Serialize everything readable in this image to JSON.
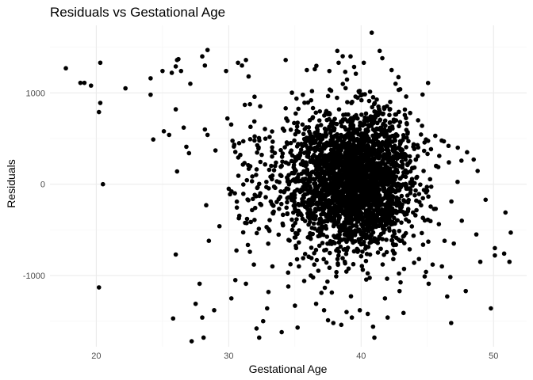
{
  "chart_data": {
    "type": "scatter",
    "title": "Residuals vs Gestational Age",
    "xlabel": "Gestational Age",
    "ylabel": "Residuals",
    "xlim": [
      16.5,
      52.5
    ],
    "ylim": [
      -1780,
      1740
    ],
    "x_ticks": [
      20,
      30,
      40,
      50
    ],
    "y_ticks": [
      -1000,
      0,
      1000
    ],
    "x_tick_labels": [
      "20",
      "30",
      "40",
      "50"
    ],
    "y_tick_labels": [
      "-1000",
      "0",
      "1000"
    ],
    "grid": true,
    "legend": "none",
    "point_color": "#000000",
    "background": "#ffffff",
    "approx_total_points": 3000,
    "points": [
      [
        17.7,
        1270
      ],
      [
        18.8,
        1110
      ],
      [
        19.1,
        1110
      ],
      [
        19.6,
        1080
      ],
      [
        20.2,
        790
      ],
      [
        20.3,
        890
      ],
      [
        20.3,
        1330
      ],
      [
        20.5,
        0
      ],
      [
        20.2,
        -1130
      ],
      [
        22.2,
        1050
      ],
      [
        24.1,
        1160
      ],
      [
        24.1,
        980
      ],
      [
        24.3,
        490
      ],
      [
        25.0,
        1240
      ],
      [
        25.1,
        580
      ],
      [
        25.5,
        540
      ],
      [
        25.7,
        1220
      ],
      [
        25.8,
        -1470
      ],
      [
        26.0,
        1290
      ],
      [
        26.1,
        1360
      ],
      [
        26.2,
        1370
      ],
      [
        26.0,
        820
      ],
      [
        26.1,
        140
      ],
      [
        26.0,
        -770
      ],
      [
        26.4,
        1240
      ],
      [
        26.6,
        620
      ],
      [
        26.8,
        410
      ],
      [
        27.0,
        340
      ],
      [
        27.1,
        1100
      ],
      [
        27.2,
        -1720
      ],
      [
        27.5,
        -1310
      ],
      [
        27.8,
        -1090
      ],
      [
        28.0,
        1400
      ],
      [
        28.4,
        1470
      ],
      [
        28.2,
        1300
      ],
      [
        28.1,
        -1680
      ],
      [
        28.2,
        600
      ],
      [
        28.4,
        540
      ],
      [
        28.3,
        -230
      ],
      [
        28.5,
        -620
      ],
      [
        28.0,
        -1460
      ],
      [
        28.9,
        -1380
      ],
      [
        29.0,
        370
      ],
      [
        29.3,
        -460
      ],
      [
        29.8,
        1240
      ],
      [
        29.9,
        720
      ],
      [
        30.0,
        -50
      ],
      [
        30.1,
        -110
      ],
      [
        30.2,
        -1250
      ],
      [
        30.5,
        -1050
      ],
      [
        30.7,
        1330
      ],
      [
        31.0,
        1300
      ],
      [
        31.3,
        1360
      ],
      [
        31.5,
        1180
      ],
      [
        31.3,
        -1090
      ],
      [
        31.6,
        -740
      ],
      [
        31.9,
        -880
      ],
      [
        32.1,
        -1580
      ],
      [
        32.3,
        -1680
      ],
      [
        32.0,
        -260
      ],
      [
        32.6,
        -1500
      ],
      [
        32.9,
        -1360
      ],
      [
        33.0,
        -1180
      ],
      [
        33.3,
        -900
      ],
      [
        33.4,
        -300
      ],
      [
        33.5,
        200
      ],
      [
        33.9,
        100
      ],
      [
        34.0,
        -1620
      ],
      [
        34.1,
        -450
      ],
      [
        34.3,
        1360
      ],
      [
        34.5,
        -1120
      ],
      [
        34.8,
        -500
      ],
      [
        35.2,
        -1570
      ],
      [
        35.0,
        -1330
      ],
      [
        35.3,
        -900
      ],
      [
        35.7,
        -1060
      ],
      [
        35.6,
        980
      ],
      [
        35.9,
        1250
      ],
      [
        36.2,
        -1000
      ],
      [
        36.5,
        1260
      ],
      [
        36.6,
        -1310
      ],
      [
        37.0,
        -1190
      ],
      [
        37.2,
        -1380
      ],
      [
        37.5,
        -1490
      ],
      [
        37.6,
        1240
      ],
      [
        37.9,
        -1520
      ],
      [
        38.2,
        1460
      ],
      [
        38.3,
        1330
      ],
      [
        38.5,
        -1540
      ],
      [
        38.8,
        1230
      ],
      [
        38.9,
        -1400
      ],
      [
        39.2,
        1400
      ],
      [
        39.3,
        -1460
      ],
      [
        39.6,
        1210
      ],
      [
        39.9,
        -1380
      ],
      [
        40.2,
        1330
      ],
      [
        40.5,
        -1420
      ],
      [
        40.8,
        1660
      ],
      [
        40.9,
        -1560
      ],
      [
        41.0,
        -1680
      ],
      [
        41.4,
        1460
      ],
      [
        41.6,
        1380
      ],
      [
        41.8,
        -1250
      ],
      [
        42.0,
        -1460
      ],
      [
        42.3,
        1250
      ],
      [
        42.6,
        1100
      ],
      [
        42.9,
        -1170
      ],
      [
        43.2,
        -1410
      ],
      [
        43.4,
        960
      ],
      [
        43.7,
        780
      ],
      [
        44.0,
        -860
      ],
      [
        44.3,
        700
      ],
      [
        44.6,
        640
      ],
      [
        44.9,
        -960
      ],
      [
        45.1,
        -1090
      ],
      [
        45.4,
        -880
      ],
      [
        45.6,
        530
      ],
      [
        45.9,
        310
      ],
      [
        46.1,
        -900
      ],
      [
        46.3,
        -620
      ],
      [
        46.6,
        420
      ],
      [
        46.8,
        -1520
      ],
      [
        47.0,
        -650
      ],
      [
        47.3,
        400
      ],
      [
        47.6,
        -400
      ],
      [
        47.9,
        -1170
      ],
      [
        48.0,
        350
      ],
      [
        48.5,
        270
      ],
      [
        48.7,
        -550
      ],
      [
        49.0,
        -850
      ],
      [
        49.4,
        -170
      ],
      [
        49.8,
        -1360
      ],
      [
        50.1,
        -700
      ],
      [
        50.1,
        -780
      ],
      [
        50.8,
        -760
      ],
      [
        50.9,
        -310
      ],
      [
        51.3,
        -530
      ],
      [
        51.2,
        -850
      ],
      [
        46.5,
        -1230
      ],
      [
        44.8,
        -1010
      ]
    ]
  }
}
